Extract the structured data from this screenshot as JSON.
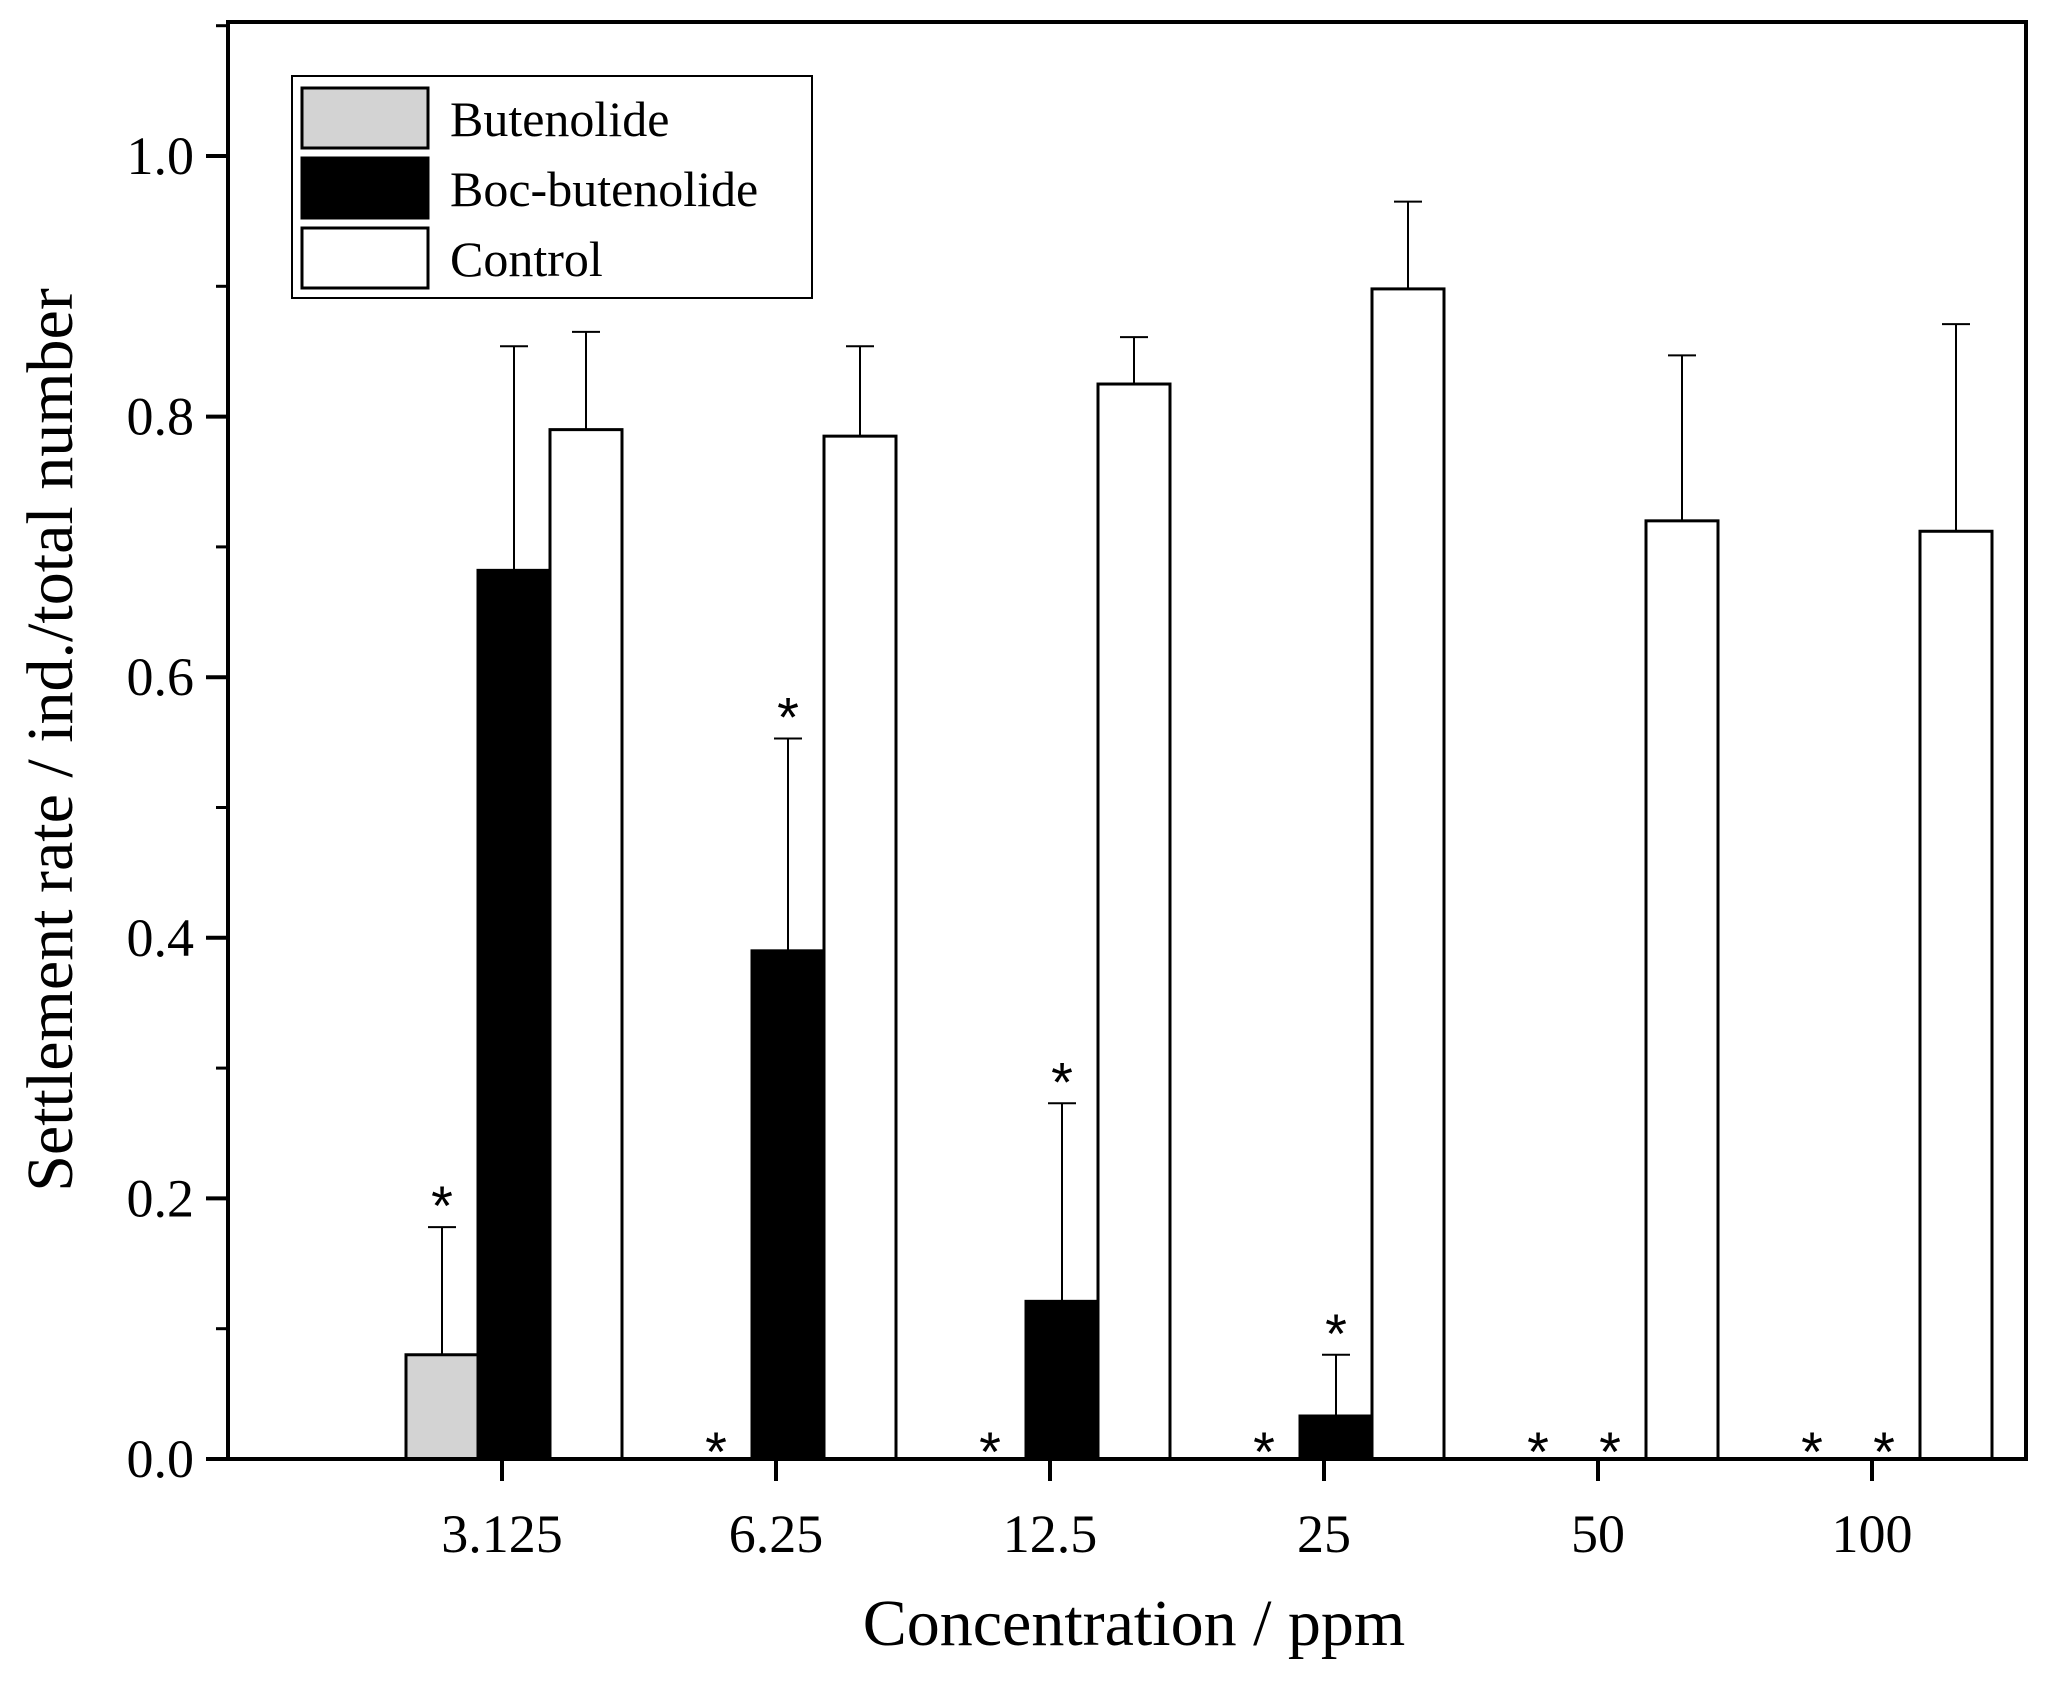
{
  "chart_data": {
    "type": "bar",
    "title": "",
    "xlabel": "Concentration / ppm",
    "ylabel": "Settlement rate / ind./total number",
    "categories": [
      "3.125",
      "6.25",
      "12.5",
      "25",
      "50",
      "100"
    ],
    "ylim": [
      0,
      1.1
    ],
    "yticks": [
      0.0,
      0.2,
      0.4,
      0.6,
      0.8,
      1.0
    ],
    "ytick_labels": [
      "0.0",
      "0.2",
      "0.4",
      "0.6",
      "0.8",
      "1.0"
    ],
    "grid": false,
    "legend_position": "top-left",
    "series": [
      {
        "name": "Butenolide",
        "color": "#d3d3d3",
        "values": [
          0.08,
          0.0,
          0.0,
          0.0,
          0.0,
          0.0
        ],
        "errors": [
          0.098,
          null,
          null,
          null,
          null,
          null
        ],
        "significance": [
          "*",
          "*",
          "*",
          "*",
          "*",
          "*"
        ]
      },
      {
        "name": "Boc-butenolide",
        "color": "#000000",
        "values": [
          0.682,
          0.39,
          0.121,
          0.033,
          0.0,
          0.0
        ],
        "errors": [
          0.172,
          0.163,
          0.152,
          0.047,
          null,
          null
        ],
        "significance": [
          "",
          "*",
          "*",
          "*",
          "*",
          "*"
        ]
      },
      {
        "name": "Control",
        "color": "#ffffff",
        "values": [
          0.79,
          0.785,
          0.825,
          0.898,
          0.72,
          0.712
        ],
        "errors": [
          0.075,
          0.069,
          0.036,
          0.067,
          0.127,
          0.159
        ],
        "significance": [
          "",
          "",
          "",
          "",
          "",
          ""
        ]
      }
    ]
  }
}
